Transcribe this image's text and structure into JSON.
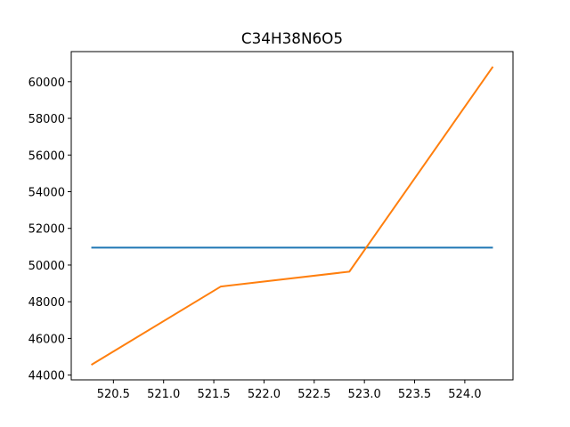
{
  "chart_data": {
    "type": "line",
    "title": "C34H38N6O5",
    "xlabel": "",
    "ylabel": "",
    "xlim": [
      520.08,
      524.48
    ],
    "ylim": [
      43740,
      61640
    ],
    "x_ticks": [
      520.5,
      521.0,
      521.5,
      522.0,
      522.5,
      523.0,
      523.5,
      524.0
    ],
    "x_tick_labels": [
      "520.5",
      "521.0",
      "521.5",
      "522.0",
      "522.5",
      "523.0",
      "523.5",
      "524.0"
    ],
    "y_ticks": [
      44000,
      46000,
      48000,
      50000,
      52000,
      54000,
      56000,
      58000,
      60000
    ],
    "y_tick_labels": [
      "44000",
      "46000",
      "48000",
      "50000",
      "52000",
      "54000",
      "56000",
      "58000",
      "60000"
    ],
    "grid": false,
    "legend": "none",
    "series": [
      {
        "color": "#1f77b4",
        "x": [
          520.28,
          524.28
        ],
        "y": [
          50950,
          50950
        ]
      },
      {
        "color": "#ff7f0e",
        "x": [
          520.28,
          521.57,
          522.85,
          524.28
        ],
        "y": [
          44560,
          48830,
          49640,
          60820
        ]
      }
    ]
  }
}
